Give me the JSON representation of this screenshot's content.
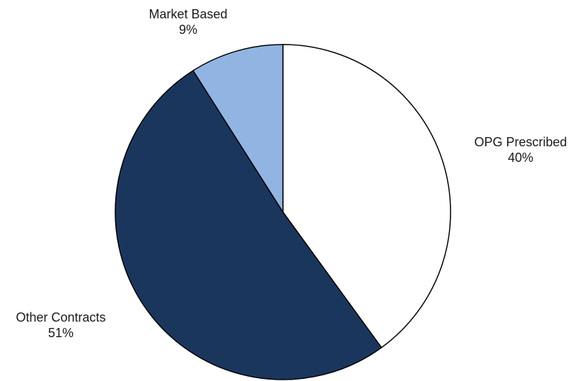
{
  "chart_data": {
    "type": "pie",
    "title": "",
    "categories": [
      "OPG Prescribed",
      "Other Contracts",
      "Market Based"
    ],
    "values": [
      40,
      51,
      9
    ],
    "labels": [
      "40%",
      "51%",
      "9%"
    ],
    "colors": [
      "#ffffff",
      "#1b365d",
      "#92b4e2"
    ],
    "stroke_color": "#000000",
    "start": "12 o'clock",
    "direction": "clockwise",
    "legend": "none"
  }
}
